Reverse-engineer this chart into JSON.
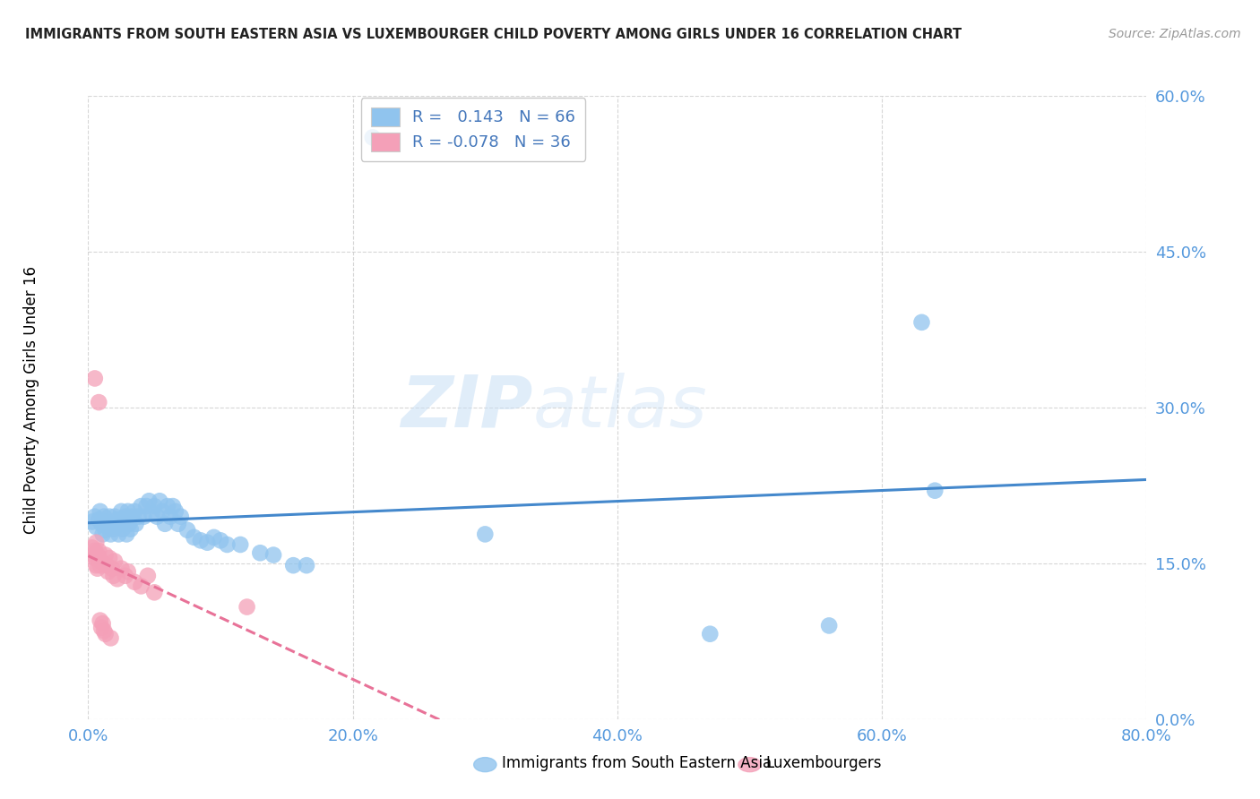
{
  "title": "IMMIGRANTS FROM SOUTH EASTERN ASIA VS LUXEMBOURGER CHILD POVERTY AMONG GIRLS UNDER 16 CORRELATION CHART",
  "source": "Source: ZipAtlas.com",
  "ylabel_label": "Child Poverty Among Girls Under 16",
  "xmin": 0.0,
  "xmax": 0.8,
  "ymin": 0.0,
  "ymax": 0.6,
  "blue_R": 0.143,
  "blue_N": 66,
  "pink_R": -0.078,
  "pink_N": 36,
  "legend_label_blue": "Immigrants from South Eastern Asia",
  "legend_label_pink": "Luxembourgers",
  "blue_color": "#90C4EE",
  "pink_color": "#F4A0B8",
  "blue_line_color": "#4488CC",
  "pink_line_color": "#E87298",
  "title_color": "#222222",
  "source_color": "#999999",
  "axis_color": "#5599DD",
  "grid_color": "#cccccc",
  "watermark_zip": "ZIP",
  "watermark_atlas": "atlas",
  "blue_dots": [
    [
      0.003,
      0.19
    ],
    [
      0.005,
      0.195
    ],
    [
      0.006,
      0.185
    ],
    [
      0.008,
      0.192
    ],
    [
      0.009,
      0.2
    ],
    [
      0.01,
      0.188
    ],
    [
      0.011,
      0.178
    ],
    [
      0.012,
      0.195
    ],
    [
      0.013,
      0.182
    ],
    [
      0.014,
      0.19
    ],
    [
      0.015,
      0.185
    ],
    [
      0.016,
      0.195
    ],
    [
      0.017,
      0.178
    ],
    [
      0.018,
      0.188
    ],
    [
      0.019,
      0.183
    ],
    [
      0.02,
      0.195
    ],
    [
      0.021,
      0.185
    ],
    [
      0.022,
      0.192
    ],
    [
      0.023,
      0.178
    ],
    [
      0.024,
      0.188
    ],
    [
      0.025,
      0.2
    ],
    [
      0.026,
      0.183
    ],
    [
      0.027,
      0.192
    ],
    [
      0.028,
      0.195
    ],
    [
      0.029,
      0.178
    ],
    [
      0.03,
      0.2
    ],
    [
      0.031,
      0.188
    ],
    [
      0.032,
      0.183
    ],
    [
      0.033,
      0.195
    ],
    [
      0.035,
      0.2
    ],
    [
      0.036,
      0.188
    ],
    [
      0.038,
      0.195
    ],
    [
      0.04,
      0.205
    ],
    [
      0.042,
      0.195
    ],
    [
      0.044,
      0.205
    ],
    [
      0.046,
      0.21
    ],
    [
      0.048,
      0.198
    ],
    [
      0.05,
      0.205
    ],
    [
      0.052,
      0.195
    ],
    [
      0.054,
      0.21
    ],
    [
      0.056,
      0.2
    ],
    [
      0.058,
      0.188
    ],
    [
      0.06,
      0.205
    ],
    [
      0.062,
      0.195
    ],
    [
      0.064,
      0.205
    ],
    [
      0.066,
      0.2
    ],
    [
      0.068,
      0.188
    ],
    [
      0.07,
      0.195
    ],
    [
      0.075,
      0.182
    ],
    [
      0.08,
      0.175
    ],
    [
      0.085,
      0.172
    ],
    [
      0.09,
      0.17
    ],
    [
      0.095,
      0.175
    ],
    [
      0.1,
      0.172
    ],
    [
      0.105,
      0.168
    ],
    [
      0.115,
      0.168
    ],
    [
      0.13,
      0.16
    ],
    [
      0.14,
      0.158
    ],
    [
      0.155,
      0.148
    ],
    [
      0.165,
      0.148
    ],
    [
      0.215,
      0.56
    ],
    [
      0.3,
      0.178
    ],
    [
      0.47,
      0.082
    ],
    [
      0.56,
      0.09
    ],
    [
      0.63,
      0.382
    ],
    [
      0.64,
      0.22
    ]
  ],
  "pink_dots": [
    [
      0.003,
      0.165
    ],
    [
      0.004,
      0.158
    ],
    [
      0.005,
      0.162
    ],
    [
      0.005,
      0.155
    ],
    [
      0.006,
      0.17
    ],
    [
      0.006,
      0.148
    ],
    [
      0.007,
      0.158
    ],
    [
      0.007,
      0.145
    ],
    [
      0.008,
      0.162
    ],
    [
      0.008,
      0.155
    ],
    [
      0.009,
      0.148
    ],
    [
      0.009,
      0.095
    ],
    [
      0.01,
      0.152
    ],
    [
      0.01,
      0.088
    ],
    [
      0.011,
      0.092
    ],
    [
      0.012,
      0.085
    ],
    [
      0.013,
      0.158
    ],
    [
      0.013,
      0.082
    ],
    [
      0.014,
      0.148
    ],
    [
      0.015,
      0.142
    ],
    [
      0.016,
      0.155
    ],
    [
      0.017,
      0.078
    ],
    [
      0.018,
      0.145
    ],
    [
      0.019,
      0.138
    ],
    [
      0.02,
      0.152
    ],
    [
      0.022,
      0.135
    ],
    [
      0.025,
      0.145
    ],
    [
      0.028,
      0.138
    ],
    [
      0.03,
      0.142
    ],
    [
      0.035,
      0.132
    ],
    [
      0.04,
      0.128
    ],
    [
      0.045,
      0.138
    ],
    [
      0.005,
      0.328
    ],
    [
      0.008,
      0.305
    ],
    [
      0.05,
      0.122
    ],
    [
      0.12,
      0.108
    ]
  ]
}
